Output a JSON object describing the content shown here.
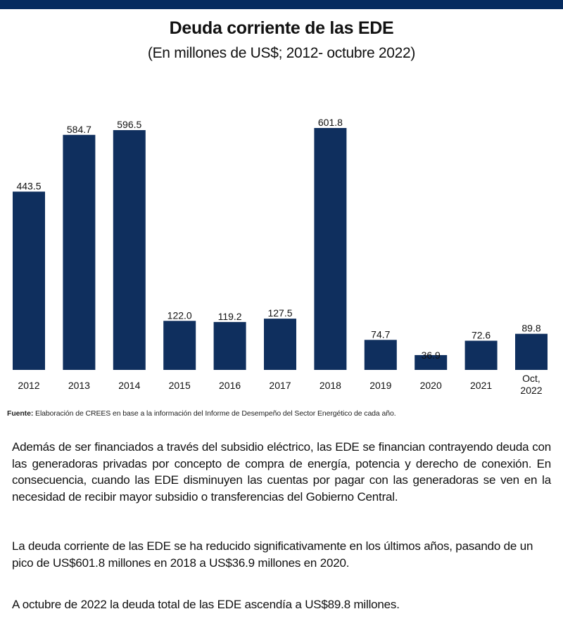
{
  "header": {
    "band_color": "#062b5f"
  },
  "chart_data": {
    "type": "bar",
    "title": "Deuda corriente de las EDE",
    "subtitle": "(En millones de US$; 2012- octubre 2022)",
    "xlabel": "",
    "ylabel": "",
    "categories": [
      "2012",
      "2013",
      "2014",
      "2015",
      "2016",
      "2017",
      "2018",
      "2019",
      "2020",
      "2021",
      [
        "Oct,",
        "2022"
      ]
    ],
    "values": [
      443.5,
      584.7,
      596.5,
      122.0,
      119.2,
      127.5,
      601.8,
      74.7,
      36.9,
      72.6,
      89.8
    ],
    "value_labels": [
      "443.5",
      "584.7",
      "596.5",
      "122.0",
      "119.2",
      "127.5",
      "601.8",
      "74.7",
      "36.9",
      "72.6",
      "89.8"
    ],
    "ylim": [
      0,
      601.8
    ],
    "grid": false,
    "legend": "none",
    "bar_color": "#0f2f5e"
  },
  "source": {
    "label": "Fuente:",
    "text": " Elaboración de CREES en base a la información del Informe de Desempeño del Sector Energético de cada año."
  },
  "paragraphs": [
    "Además de ser financiados a través del subsidio eléctrico, las EDE se financian contrayendo deuda con las generadoras privadas por concepto de compra de energía, potencia y derecho de conexión. En consecuencia, cuando las EDE disminuyen las cuentas por pagar con las generadoras se ven en la necesidad de recibir mayor subsidio o transferencias del Gobierno Central.",
    "La deuda corriente de las EDE se ha reducido significativamente en los últimos años, pasando de un pico de US$601.8 millones  en 2018 a US$36.9 millones en 2020.",
    "A octubre de 2022 la deuda total de las EDE ascendía a US$89.8 millones."
  ]
}
